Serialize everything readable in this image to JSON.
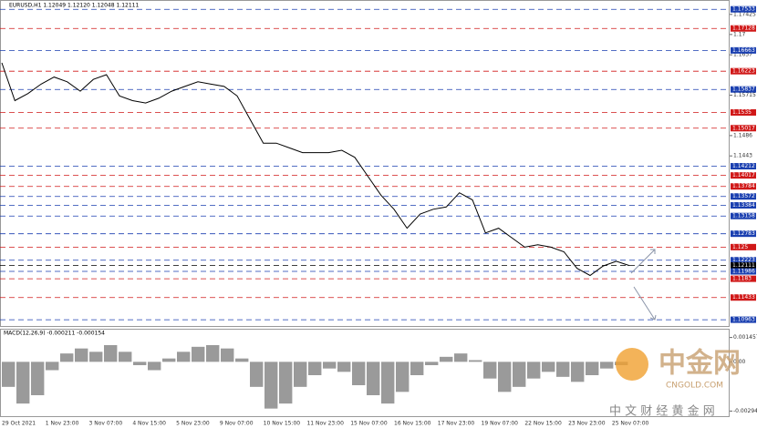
{
  "chart_data": {
    "type": "line",
    "title": "EURUSD,H1  1.12049 1.12120 1.12048 1.12111",
    "xlabels": [
      "29 Oct 2021",
      "1 Nov 23:00",
      "3 Nov 07:00",
      "4 Nov 15:00",
      "5 Nov 23:00",
      "9 Nov 07:00",
      "10 Nov 15:00",
      "11 Nov 23:00",
      "15 Nov 07:00",
      "16 Nov 15:00",
      "17 Nov 23:00",
      "19 Nov 07:00",
      "22 Nov 15:00",
      "23 Nov 23:00",
      "25 Nov 07:00"
    ],
    "series": [
      {
        "name": "EURUSD",
        "color": "#000000",
        "values": [
          1.164,
          1.156,
          1.1575,
          1.1595,
          1.161,
          1.16,
          1.158,
          1.1605,
          1.1615,
          1.157,
          1.156,
          1.1555,
          1.1565,
          1.158,
          1.159,
          1.16,
          1.1595,
          1.159,
          1.157,
          1.152,
          1.147,
          1.147,
          1.146,
          1.145,
          1.145,
          1.145,
          1.1455,
          1.144,
          1.14,
          1.136,
          1.133,
          1.129,
          1.132,
          1.133,
          1.1335,
          1.1365,
          1.135,
          1.128,
          1.129,
          1.127,
          1.125,
          1.1255,
          1.125,
          1.124,
          1.1205,
          1.119,
          1.121,
          1.122,
          1.1211
        ]
      }
    ],
    "ylim": [
      1.1083,
      1.1773
    ],
    "yticks": [
      1.17425,
      1.17,
      1.1657,
      1.15715,
      1.1486,
      1.1443
    ],
    "levels": [
      {
        "value": 1.17533,
        "color": "#1a3fb0"
      },
      {
        "value": 1.17128,
        "color": "#d01818"
      },
      {
        "value": 1.16663,
        "color": "#1a3fb0"
      },
      {
        "value": 1.16223,
        "color": "#d01818"
      },
      {
        "value": 1.15837,
        "color": "#1a3fb0"
      },
      {
        "value": 1.1535,
        "color": "#d01818"
      },
      {
        "value": 1.15017,
        "color": "#d01818"
      },
      {
        "value": 1.14212,
        "color": "#1a3fb0"
      },
      {
        "value": 1.14017,
        "color": "#d01818"
      },
      {
        "value": 1.13784,
        "color": "#d01818"
      },
      {
        "value": 1.13572,
        "color": "#1a3fb0"
      },
      {
        "value": 1.13384,
        "color": "#1a3fb0"
      },
      {
        "value": 1.13158,
        "color": "#1a3fb0"
      },
      {
        "value": 1.12783,
        "color": "#1a3fb0"
      },
      {
        "value": 1.125,
        "color": "#d01818"
      },
      {
        "value": 1.12223,
        "color": "#1a3fb0"
      },
      {
        "value": 1.12111,
        "color": "#000000"
      },
      {
        "value": 1.11986,
        "color": "#1a3fb0"
      },
      {
        "value": 1.1183,
        "color": "#d01818"
      },
      {
        "value": 1.11433,
        "color": "#d01818"
      },
      {
        "value": 1.10963,
        "color": "#1a3fb0"
      }
    ],
    "macd": {
      "label": "MACD(12,26,9) -0.000211 -0.000154",
      "values": [
        -0.0015,
        -0.0025,
        -0.002,
        -0.0005,
        0.0005,
        0.0008,
        0.0006,
        0.001,
        0.0006,
        -0.0002,
        -0.0005,
        0.0002,
        0.0006,
        0.0009,
        0.001,
        0.0008,
        0.0002,
        -0.0015,
        -0.0028,
        -0.0025,
        -0.0015,
        -0.0008,
        -0.0004,
        -0.0006,
        -0.0014,
        -0.002,
        -0.0025,
        -0.0018,
        -0.0008,
        -0.0002,
        0.0003,
        0.0005,
        0.0001,
        -0.001,
        -0.0018,
        -0.0015,
        -0.001,
        -0.0006,
        -0.0009,
        -0.0012,
        -0.0008,
        -0.0004,
        -0.0002
      ],
      "ylim": [
        -0.0032,
        0.0016
      ],
      "yticks": [
        0.001457,
        {
          "value": 0,
          "label": "0.00"
        },
        -0.002949
      ]
    },
    "watermark": {
      "brand": "中金网",
      "site": "CNGOLD.COM",
      "tagline": "中 文 财 经 黄 金 网"
    }
  }
}
